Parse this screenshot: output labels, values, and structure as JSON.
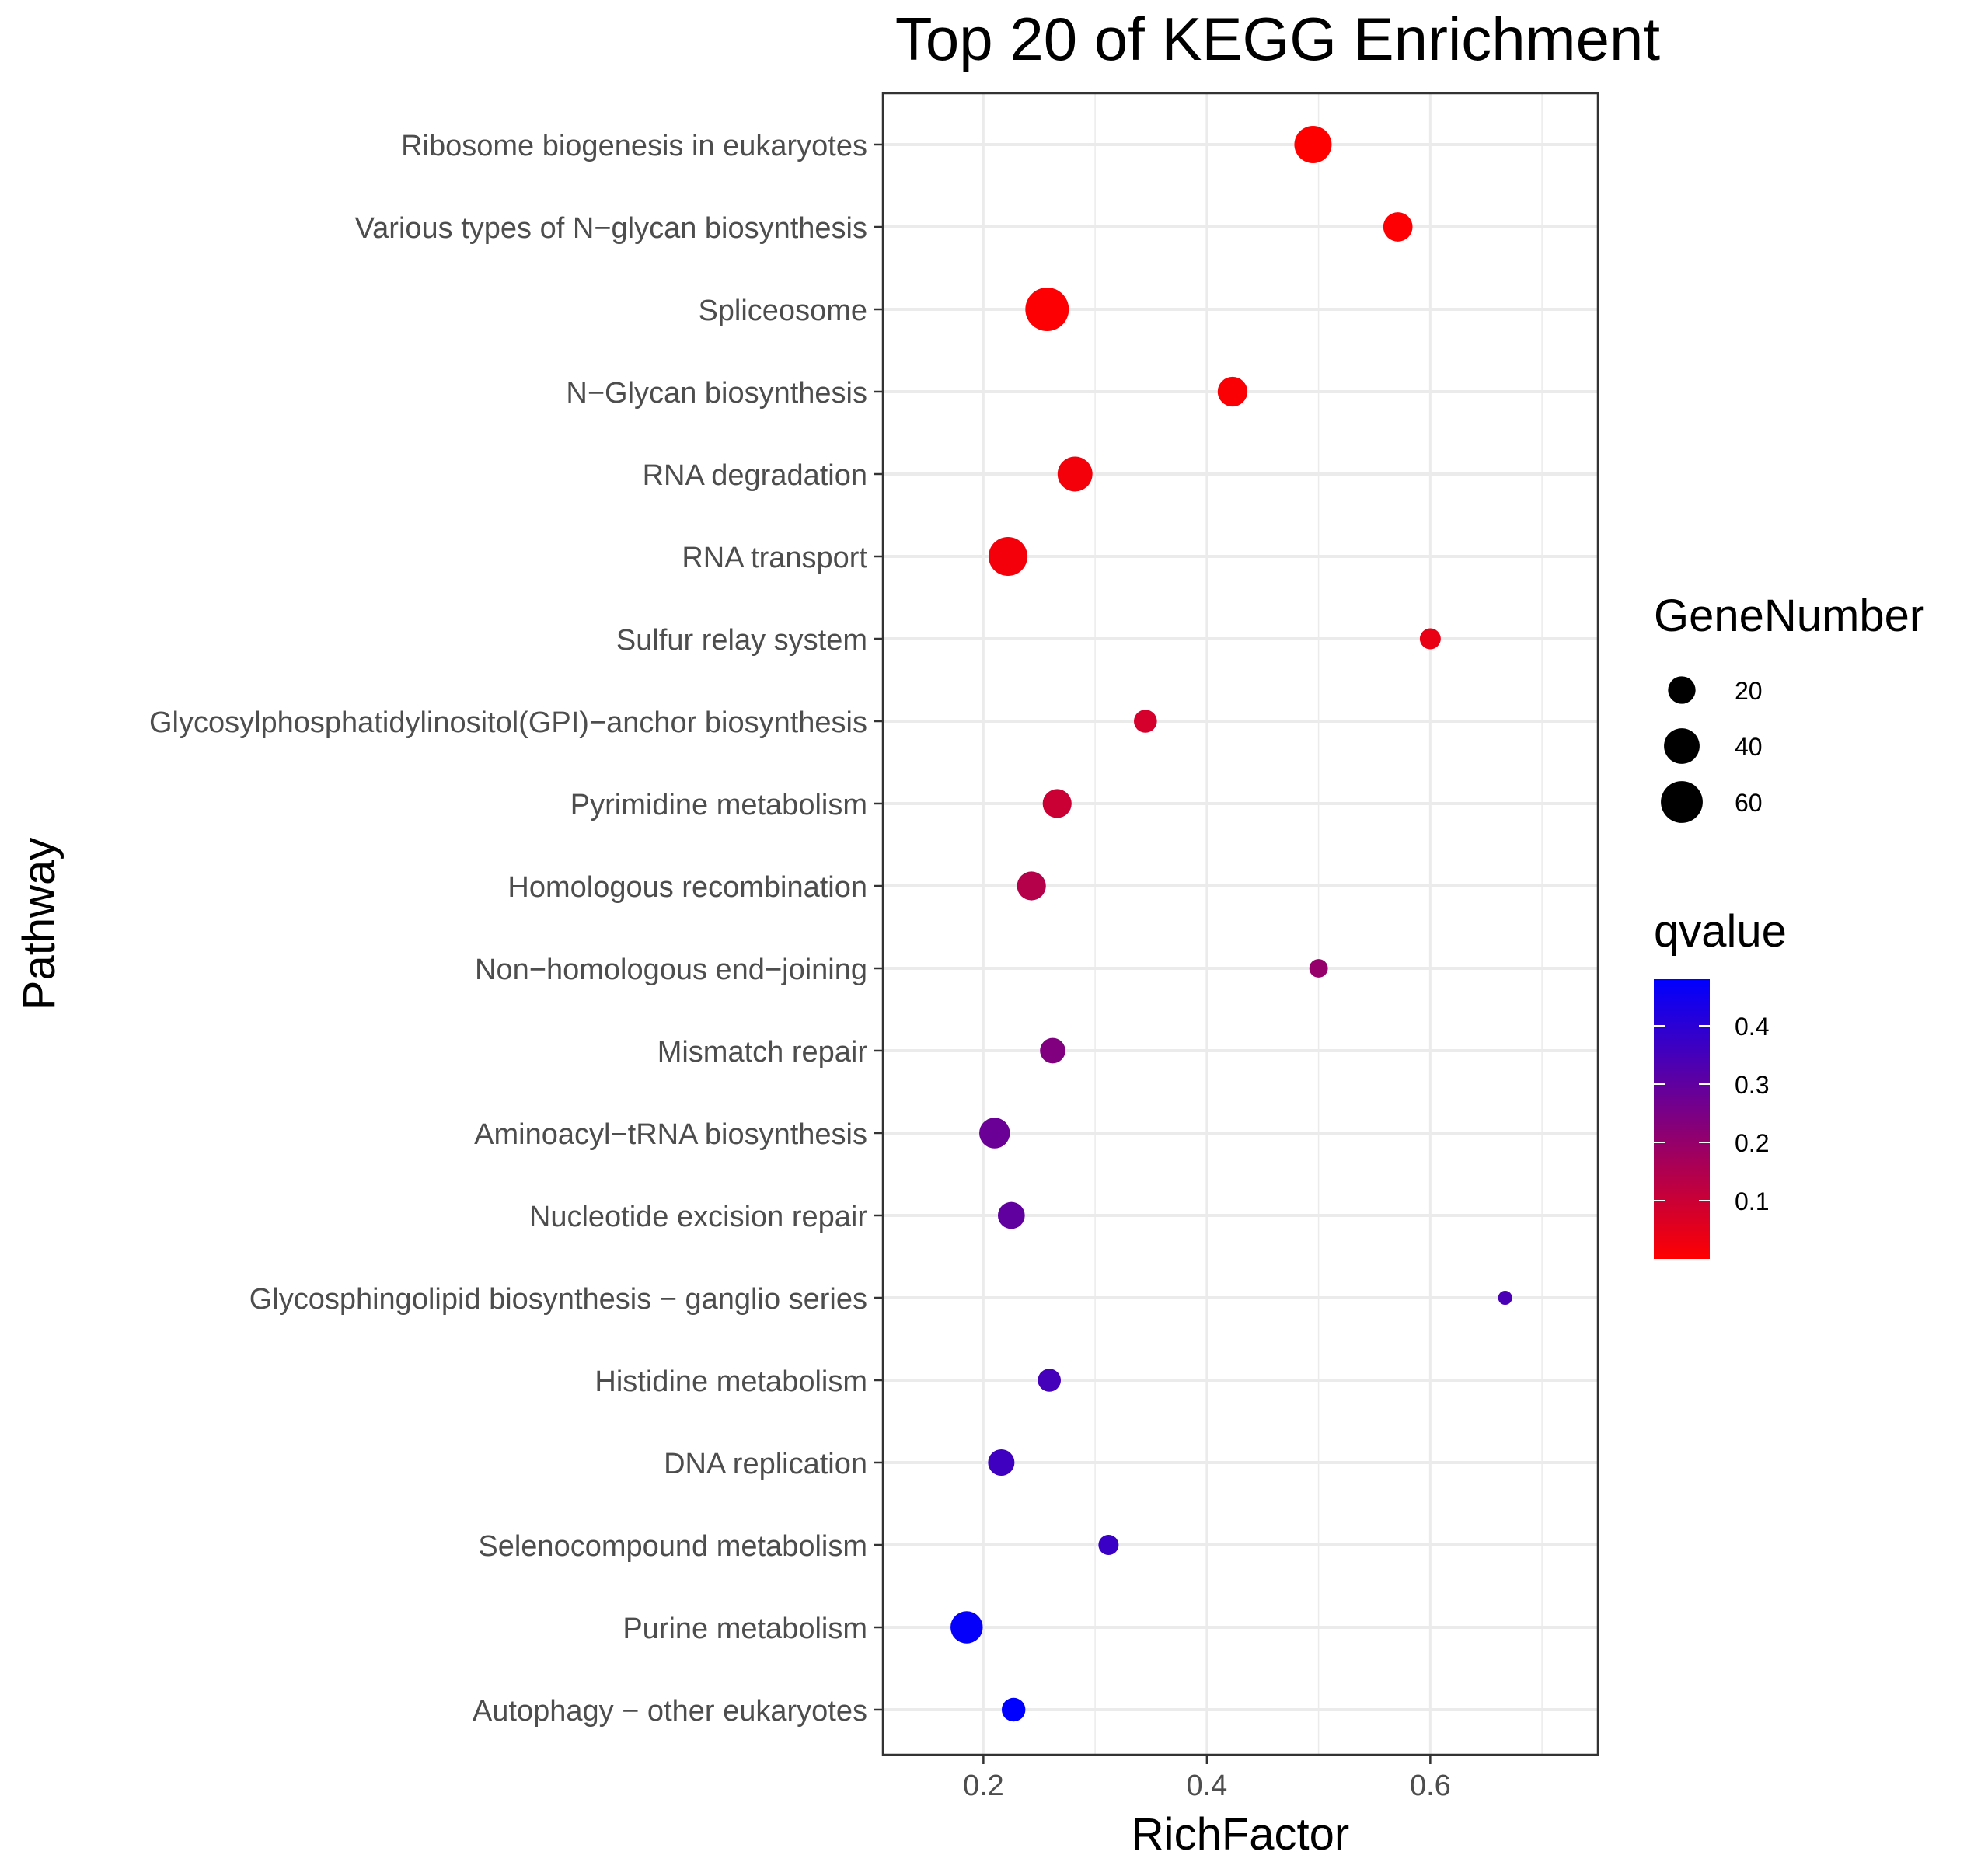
{
  "chart_data": {
    "type": "scatter",
    "title": "Top 20 of KEGG Enrichment",
    "xlabel": "RichFactor",
    "ylabel": "Pathway",
    "xlim": [
      0.11,
      0.75
    ],
    "xticks": [
      {
        "value": 0.2,
        "label": "0.2"
      },
      {
        "value": 0.4,
        "label": "0.4"
      },
      {
        "value": 0.6,
        "label": "0.6"
      }
    ],
    "grid": true,
    "legend_placement": "right",
    "size_legend": {
      "title": "GeneNumber",
      "entries": [
        {
          "value": 20,
          "label": "20"
        },
        {
          "value": 40,
          "label": "40"
        },
        {
          "value": 60,
          "label": "60"
        }
      ]
    },
    "color_legend": {
      "title": "qvalue",
      "low_color": "#FF0000",
      "high_color": "#0000FF",
      "range": [
        0.0,
        0.48
      ],
      "ticks": [
        {
          "value": 0.1,
          "label": "0.1"
        },
        {
          "value": 0.2,
          "label": "0.2"
        },
        {
          "value": 0.3,
          "label": "0.3"
        },
        {
          "value": 0.4,
          "label": "0.4"
        }
      ]
    },
    "points": [
      {
        "pathway": "Ribosome biogenesis in eukaryotes",
        "rich_factor": 0.495,
        "gene_number": 45,
        "qvalue": 0.0
      },
      {
        "pathway": "Various types of N−glycan biosynthesis",
        "rich_factor": 0.571,
        "gene_number": 24,
        "qvalue": 0.005
      },
      {
        "pathway": "Spliceosome",
        "rich_factor": 0.257,
        "gene_number": 66,
        "qvalue": 0.005
      },
      {
        "pathway": "N−Glycan biosynthesis",
        "rich_factor": 0.423,
        "gene_number": 25,
        "qvalue": 0.01
      },
      {
        "pathway": "RNA degradation",
        "rich_factor": 0.282,
        "gene_number": 38,
        "qvalue": 0.02
      },
      {
        "pathway": "RNA transport",
        "rich_factor": 0.222,
        "gene_number": 50,
        "qvalue": 0.02
      },
      {
        "pathway": "Sulfur relay system",
        "rich_factor": 0.6,
        "gene_number": 9,
        "qvalue": 0.04
      },
      {
        "pathway": "Glycosylphosphatidylinositol(GPI)−anchor biosynthesis",
        "rich_factor": 0.345,
        "gene_number": 12,
        "qvalue": 0.08
      },
      {
        "pathway": "Pyrimidine metabolism",
        "rich_factor": 0.266,
        "gene_number": 23,
        "qvalue": 0.1
      },
      {
        "pathway": "Homologous recombination",
        "rich_factor": 0.243,
        "gene_number": 23,
        "qvalue": 0.14
      },
      {
        "pathway": "Non−homologous end−joining",
        "rich_factor": 0.5,
        "gene_number": 6,
        "qvalue": 0.2
      },
      {
        "pathway": "Mismatch repair",
        "rich_factor": 0.262,
        "gene_number": 16,
        "qvalue": 0.24
      },
      {
        "pathway": "Aminoacyl−tRNA biosynthesis",
        "rich_factor": 0.21,
        "gene_number": 27,
        "qvalue": 0.28
      },
      {
        "pathway": "Nucleotide excision repair",
        "rich_factor": 0.225,
        "gene_number": 19,
        "qvalue": 0.3
      },
      {
        "pathway": "Glycosphingolipid biosynthesis − ganglio series",
        "rich_factor": 0.667,
        "gene_number": 2,
        "qvalue": 0.34
      },
      {
        "pathway": "Histidine metabolism",
        "rich_factor": 0.259,
        "gene_number": 12,
        "qvalue": 0.35
      },
      {
        "pathway": "DNA replication",
        "rich_factor": 0.216,
        "gene_number": 18,
        "qvalue": 0.36
      },
      {
        "pathway": "Selenocompound metabolism",
        "rich_factor": 0.312,
        "gene_number": 8,
        "qvalue": 0.37
      },
      {
        "pathway": "Purine metabolism",
        "rich_factor": 0.185,
        "gene_number": 31,
        "qvalue": 0.47
      },
      {
        "pathway": "Autophagy − other eukaryotes",
        "rich_factor": 0.227,
        "gene_number": 13,
        "qvalue": 0.48
      }
    ]
  }
}
